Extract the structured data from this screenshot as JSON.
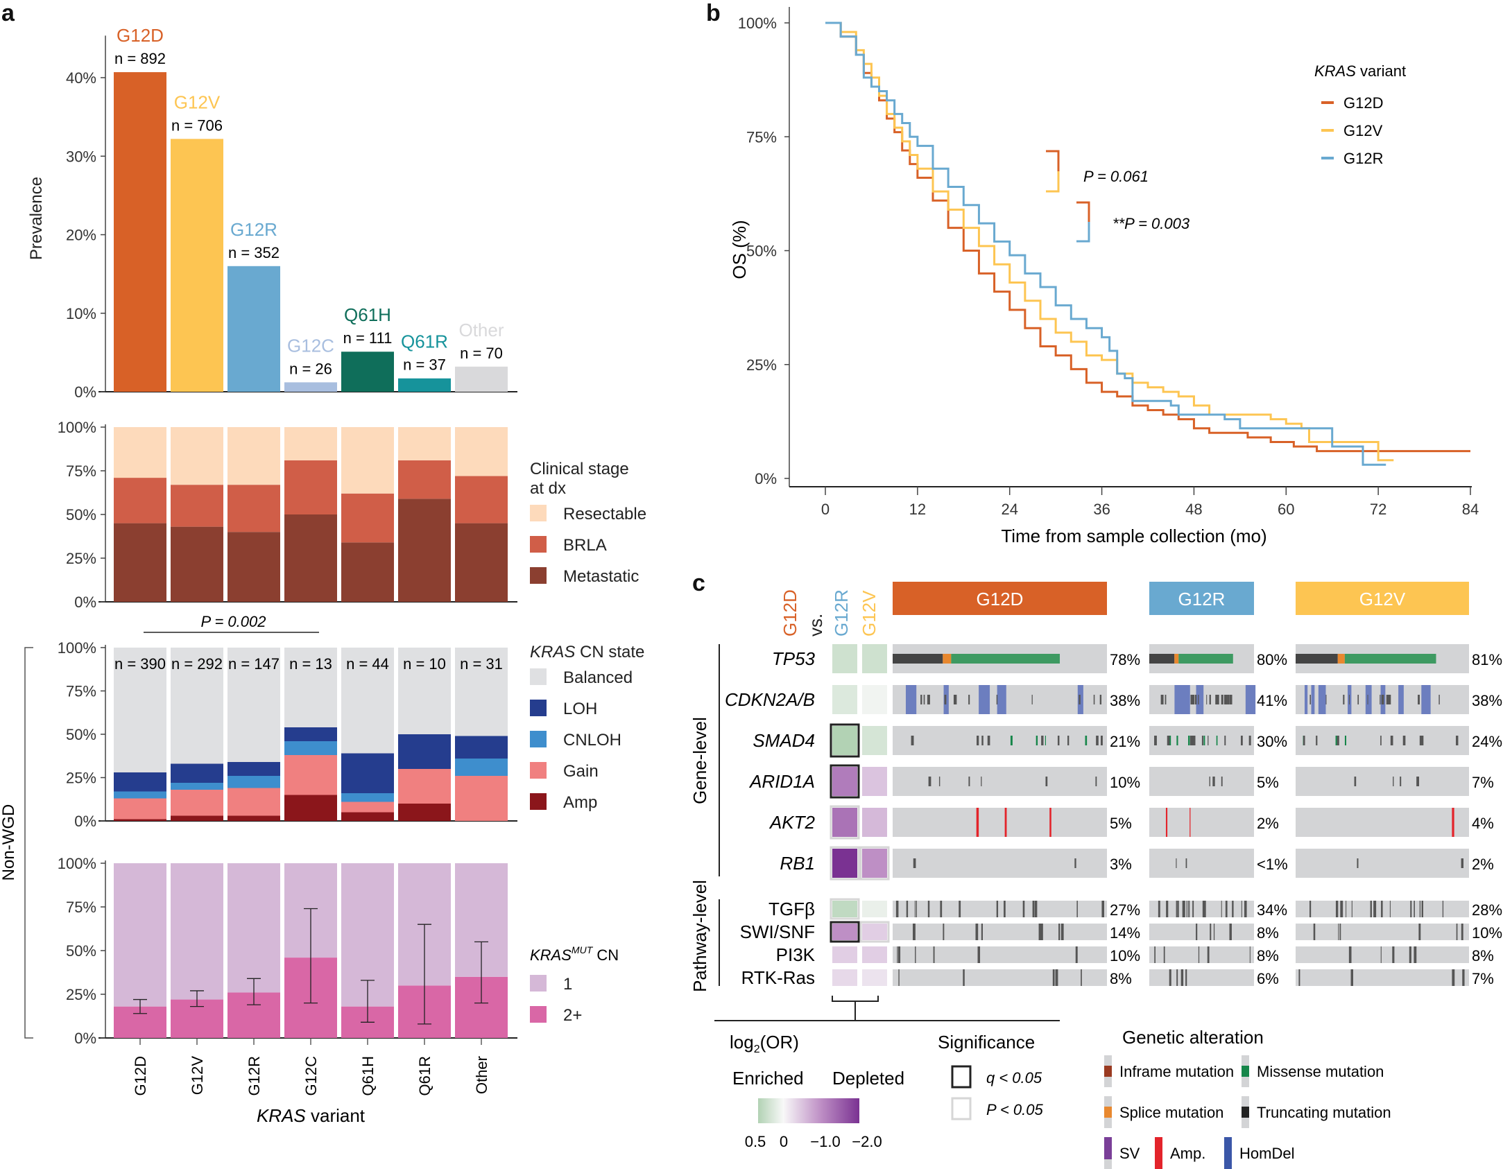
{
  "panels": {
    "a": "a",
    "b": "b",
    "c": "c"
  },
  "colors": {
    "G12D": "#D86127",
    "G12V": "#FDC552",
    "G12R": "#69A9D0",
    "G12C": "#A8BEDF",
    "Q61H": "#0F6E5A",
    "Q61R": "#16939B",
    "Other": "#D9D9DB",
    "resectable": "#FDDABB",
    "brla": "#D05E48",
    "metastatic": "#8B3F30",
    "balanced": "#DFE0E2",
    "loh": "#253D8E",
    "cnloh": "#3E8ECD",
    "gain": "#F08080",
    "amp": "#8B161B",
    "cn1": "#D5B8D7",
    "cn2": "#D967A6",
    "tile_bg": "#D3D4D6",
    "inframe": "#9A3A21",
    "missense": "#16864A",
    "splice": "#E8882F",
    "truncating": "#222222",
    "sv": "#7A3F98",
    "ampAlt": "#E3242B",
    "homdel": "#3B57A8"
  },
  "chart_data": [
    {
      "id": "prevalence",
      "type": "bar",
      "title": "",
      "ylabel": "Prevalence",
      "ylim": [
        0,
        45
      ],
      "yticks": [
        "0%",
        "10%",
        "20%",
        "30%",
        "40%"
      ],
      "yticks_values": [
        0,
        10,
        20,
        30,
        40
      ],
      "categories": [
        "G12D",
        "G12V",
        "G12R",
        "G12C",
        "Q61H",
        "Q61R",
        "Other"
      ],
      "values": [
        40.7,
        32.2,
        16.0,
        1.2,
        5.1,
        1.7,
        3.2
      ],
      "n_labels": [
        "n = 892",
        "n = 706",
        "n = 352",
        "n = 26",
        "n = 111",
        "n = 37",
        "n = 70"
      ]
    },
    {
      "id": "clinical-stage",
      "type": "bar",
      "stacked": true,
      "ylim": [
        0,
        100
      ],
      "yticks": [
        "0%",
        "25%",
        "50%",
        "75%",
        "100%"
      ],
      "categories": [
        "G12D",
        "G12V",
        "G12R",
        "G12C",
        "Q61H",
        "Q61R",
        "Other"
      ],
      "legend_title": "Clinical stage at dx",
      "legend_title_lines": [
        "Clinical stage",
        "at dx"
      ],
      "series": [
        {
          "name": "Metastatic",
          "key": "metastatic",
          "values": [
            45,
            43,
            40,
            50,
            34,
            59,
            45
          ]
        },
        {
          "name": "BRLA",
          "key": "brla",
          "values": [
            26,
            24,
            27,
            31,
            28,
            22,
            27
          ]
        },
        {
          "name": "Resectable",
          "key": "resectable",
          "values": [
            29,
            33,
            33,
            19,
            38,
            19,
            28
          ]
        }
      ],
      "legend_order": [
        "Resectable",
        "BRLA",
        "Metastatic"
      ],
      "legend_keys": [
        "resectable",
        "brla",
        "metastatic"
      ],
      "annotation": {
        "text": "P = 0.002",
        "from": "G12D",
        "to": "G12C"
      }
    },
    {
      "id": "kras-cn-state",
      "type": "bar",
      "stacked": true,
      "group_label": "Non-WGD",
      "ylim": [
        0,
        100
      ],
      "yticks": [
        "0%",
        "25%",
        "50%",
        "75%",
        "100%"
      ],
      "categories": [
        "G12D",
        "G12V",
        "G12R",
        "G12C",
        "Q61H",
        "Q61R",
        "Other"
      ],
      "n_labels": [
        "n = 390",
        "n = 292",
        "n = 147",
        "n = 13",
        "n = 44",
        "n = 10",
        "n = 31"
      ],
      "legend_title": "KRAS CN state",
      "series": [
        {
          "name": "Amp",
          "key": "amp",
          "values": [
            1,
            3,
            3,
            15,
            5,
            10,
            0
          ]
        },
        {
          "name": "Gain",
          "key": "gain",
          "values": [
            12,
            15,
            16,
            23,
            6,
            20,
            26
          ]
        },
        {
          "name": "CNLOH",
          "key": "cnloh",
          "values": [
            4,
            4,
            7,
            8,
            5,
            0,
            10
          ]
        },
        {
          "name": "LOH",
          "key": "loh",
          "values": [
            11,
            11,
            8,
            8,
            23,
            20,
            13
          ]
        },
        {
          "name": "Balanced",
          "key": "balanced",
          "values": [
            72,
            67,
            66,
            46,
            61,
            50,
            51
          ]
        }
      ],
      "legend_order": [
        "Balanced",
        "LOH",
        "CNLOH",
        "Gain",
        "Amp"
      ],
      "legend_keys": [
        "balanced",
        "loh",
        "cnloh",
        "gain",
        "amp"
      ]
    },
    {
      "id": "kras-mut-cn",
      "type": "bar",
      "stacked": true,
      "ylim": [
        0,
        100
      ],
      "yticks": [
        "0%",
        "25%",
        "50%",
        "75%",
        "100%"
      ],
      "categories": [
        "G12D",
        "G12V",
        "G12R",
        "G12C",
        "Q61H",
        "Q61R",
        "Other"
      ],
      "xlabel": "KRAS variant",
      "legend_title": "KRAS MUT CN",
      "series": [
        {
          "name": "2+",
          "key": "cn2",
          "values": [
            18,
            22,
            26,
            46,
            18,
            30,
            35
          ]
        },
        {
          "name": "1",
          "key": "cn1",
          "values": [
            82,
            78,
            74,
            54,
            82,
            70,
            65
          ]
        }
      ],
      "error_bars_2plus": [
        [
          14,
          22
        ],
        [
          18,
          27
        ],
        [
          19,
          34
        ],
        [
          20,
          74
        ],
        [
          9,
          33
        ],
        [
          8,
          65
        ],
        [
          20,
          55
        ]
      ],
      "legend_order": [
        "1",
        "2+"
      ],
      "legend_keys": [
        "cn1",
        "cn2"
      ]
    },
    {
      "id": "overall-survival",
      "type": "line",
      "step": true,
      "xlabel": "Time from sample collection (mo)",
      "ylabel": "OS (%)",
      "xlim": [
        0,
        84
      ],
      "ylim": [
        0,
        100
      ],
      "xticks": [
        0,
        12,
        24,
        36,
        48,
        60,
        72,
        84
      ],
      "yticks": [
        "0%",
        "25%",
        "50%",
        "75%",
        "100%"
      ],
      "legend_title": "KRAS variant",
      "legend_position": "top-right",
      "series": [
        {
          "name": "G12D",
          "key": "G12D",
          "x": [
            0,
            2,
            4,
            5,
            6,
            7,
            8,
            9,
            10,
            11,
            12,
            14,
            16,
            18,
            20,
            22,
            24,
            26,
            28,
            30,
            32,
            34,
            36,
            38,
            40,
            42,
            44,
            46,
            48,
            50,
            52,
            55,
            58,
            61,
            64,
            70,
            84
          ],
          "y": [
            100,
            97,
            93,
            89,
            86,
            83,
            79,
            76,
            72,
            69,
            66,
            61,
            55,
            50,
            45,
            41,
            37,
            33,
            29,
            27,
            24,
            21,
            19,
            18,
            16,
            15,
            14,
            13,
            11,
            10,
            10,
            9,
            8,
            7,
            6,
            6,
            6
          ]
        },
        {
          "name": "G12V",
          "key": "G12V",
          "x": [
            0,
            2,
            4,
            5,
            6,
            7,
            8,
            9,
            10,
            11,
            12,
            14,
            16,
            18,
            20,
            22,
            24,
            26,
            28,
            30,
            32,
            34,
            36,
            38,
            40,
            42,
            44,
            46,
            48,
            50,
            54,
            58,
            60,
            62,
            63,
            70,
            72,
            74
          ],
          "y": [
            100,
            98,
            94,
            91,
            88,
            84,
            80,
            77,
            74,
            71,
            68,
            63,
            59,
            55,
            51,
            47,
            43,
            39,
            35,
            32,
            30,
            27,
            26,
            23,
            21,
            20,
            19,
            18,
            16,
            14,
            14,
            13,
            12,
            11,
            8,
            8,
            4,
            4
          ]
        },
        {
          "name": "G12R",
          "key": "G12R",
          "x": [
            0,
            2,
            4,
            5,
            6,
            7,
            8,
            9,
            10,
            11,
            12,
            14,
            16,
            18,
            20,
            22,
            24,
            26,
            28,
            30,
            32,
            34,
            36,
            37,
            38,
            39,
            40,
            42,
            45,
            46,
            49,
            52,
            54,
            56,
            60,
            64,
            66,
            70,
            73
          ],
          "y": [
            100,
            97,
            93,
            88,
            86,
            85,
            83,
            80,
            78,
            75,
            73,
            68,
            64,
            60,
            56,
            52,
            49,
            45,
            42,
            38,
            35,
            33,
            31,
            28,
            23,
            22,
            17,
            17,
            16,
            14,
            14,
            13,
            11,
            11,
            11,
            11,
            7,
            3,
            3
          ]
        }
      ],
      "annotations": [
        {
          "text": "P = 0.061",
          "pair": [
            "G12D",
            "G12V"
          ]
        },
        {
          "text": "**P = 0.003",
          "pair": [
            "G12D",
            "G12R"
          ]
        }
      ]
    },
    {
      "id": "oncoprint",
      "type": "heatmap",
      "comparison_header": {
        "ref": "G12D",
        "vs": "vs.",
        "cols": [
          "G12R",
          "G12V"
        ]
      },
      "groups": [
        "G12D",
        "G12R",
        "G12V"
      ],
      "sections": {
        "gene": "Gene-level",
        "pathway": "Pathway-level"
      },
      "rows": [
        {
          "name": "TP53",
          "level": "gene",
          "italic": true,
          "log2or": [
            0.3,
            0.3
          ],
          "sig": [
            "",
            ""
          ],
          "freq": [
            "78%",
            "80%",
            "81%"
          ]
        },
        {
          "name": "CDKN2A/B",
          "level": "gene",
          "italic": true,
          "log2or": [
            0.2,
            0.05
          ],
          "sig": [
            "",
            ""
          ],
          "freq": [
            "38%",
            "41%",
            "38%"
          ]
        },
        {
          "name": "SMAD4",
          "level": "gene",
          "italic": true,
          "log2or": [
            0.5,
            0.25
          ],
          "sig": [
            "q",
            ""
          ],
          "freq": [
            "21%",
            "30%",
            "24%"
          ]
        },
        {
          "name": "ARID1A",
          "level": "gene",
          "italic": true,
          "log2or": [
            -1.2,
            -0.5
          ],
          "sig": [
            "q",
            ""
          ],
          "freq": [
            "10%",
            "5%",
            "7%"
          ]
        },
        {
          "name": "AKT2",
          "level": "gene",
          "italic": true,
          "log2or": [
            -1.3,
            -0.6
          ],
          "sig": [
            "p",
            ""
          ],
          "freq": [
            "5%",
            "2%",
            "4%"
          ]
        },
        {
          "name": "RB1",
          "level": "gene",
          "italic": true,
          "log2or": [
            -2.0,
            -1.0
          ],
          "sig": [
            "p",
            "p"
          ],
          "freq": [
            "3%",
            "<1%",
            "2%"
          ]
        },
        {
          "name": "TGFβ",
          "level": "pathway",
          "italic": false,
          "log2or": [
            0.4,
            0.1
          ],
          "sig": [
            "p",
            ""
          ],
          "freq": [
            "27%",
            "34%",
            "28%"
          ]
        },
        {
          "name": "SWI/SNF",
          "level": "pathway",
          "italic": false,
          "log2or": [
            -1.0,
            -0.4
          ],
          "sig": [
            "q",
            "p"
          ],
          "freq": [
            "14%",
            "8%",
            "10%"
          ]
        },
        {
          "name": "PI3K",
          "level": "pathway",
          "italic": false,
          "log2or": [
            -0.4,
            -0.4
          ],
          "sig": [
            "",
            ""
          ],
          "freq": [
            "10%",
            "8%",
            "8%"
          ]
        },
        {
          "name": "RTK-Ras",
          "level": "pathway",
          "italic": false,
          "log2or": [
            -0.3,
            -0.2
          ],
          "sig": [
            "",
            ""
          ],
          "freq": [
            "8%",
            "6%",
            "7%"
          ]
        }
      ],
      "colorbar": {
        "title": "log2(OR)",
        "left": "Enriched",
        "right": "Depleted",
        "ticks": [
          "0.5",
          "0",
          "−1.0",
          "−2.0"
        ],
        "range": [
          0.5,
          -2.0
        ]
      },
      "significance": {
        "title": "Significance",
        "items": [
          {
            "key": "q",
            "label": "q < 0.05"
          },
          {
            "key": "p",
            "label": "P < 0.05"
          }
        ]
      },
      "alteration_legend": {
        "title": "Genetic alteration",
        "items": [
          {
            "key": "inframe",
            "label": "Inframe mutation"
          },
          {
            "key": "missense",
            "label": "Missense mutation"
          },
          {
            "key": "splice",
            "label": "Splice mutation"
          },
          {
            "key": "truncating",
            "label": "Truncating mutation"
          },
          {
            "key": "sv",
            "label": "SV"
          },
          {
            "key": "ampAlt",
            "label": "Amp."
          },
          {
            "key": "homdel",
            "label": "HomDel"
          }
        ]
      }
    }
  ]
}
